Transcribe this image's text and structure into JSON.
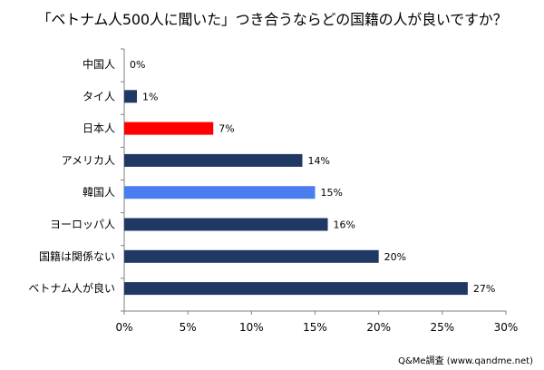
{
  "chart_data": {
    "type": "bar",
    "orientation": "horizontal",
    "title": "「ベトナム人500人に聞いた」つき合うならどの国籍の人が良いですか？",
    "categories": [
      "中国人",
      "タイ人",
      "日本人",
      "アメリカ人",
      "韓国人",
      "ヨーロッパ人",
      "国籍は関係ない",
      "ベトナム人が良い"
    ],
    "values": [
      0,
      1,
      7,
      14,
      15,
      16,
      20,
      27
    ],
    "value_labels": [
      "0%",
      "1%",
      "7%",
      "14%",
      "15%",
      "16%",
      "20%",
      "27%"
    ],
    "bar_colors": [
      "#1f3864",
      "#1f3864",
      "#ff0000",
      "#1f3864",
      "#4a7ef0",
      "#1f3864",
      "#1f3864",
      "#1f3864"
    ],
    "xlim": [
      0,
      30
    ],
    "x_ticks": [
      0,
      5,
      10,
      15,
      20,
      25,
      30
    ],
    "x_tick_labels": [
      "0%",
      "5%",
      "10%",
      "15%",
      "20%",
      "25%",
      "30%"
    ],
    "xlabel": "",
    "ylabel": "",
    "grid": false,
    "source": "Q&Me調査 (www.qandme.net)"
  }
}
